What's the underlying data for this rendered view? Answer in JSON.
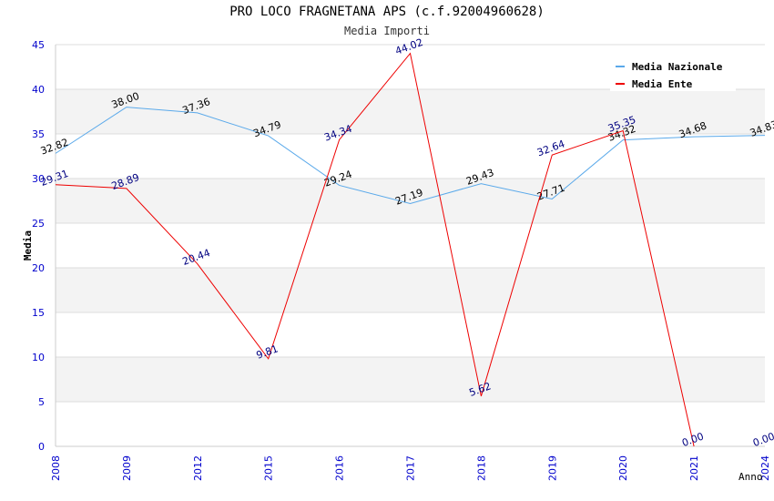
{
  "chart_data": {
    "type": "line",
    "title": "PRO LOCO FRAGNETANA APS (c.f.92004960628)",
    "subtitle": "Media Importi",
    "xlabel": "Anno",
    "ylabel": "Media",
    "ylim": [
      0,
      45
    ],
    "yticks": [
      0,
      5,
      10,
      15,
      20,
      25,
      30,
      35,
      40,
      45
    ],
    "categories": [
      "2008",
      "2009",
      "2012",
      "2015",
      "2016",
      "2017",
      "2018",
      "2019",
      "2020",
      "2021",
      "2024"
    ],
    "grid": true,
    "legend_position": "top-right",
    "series": [
      {
        "name": "Media Nazionale",
        "color": "#5aa9ea",
        "label_color": "#000000",
        "values": [
          32.82,
          38.0,
          37.36,
          34.79,
          29.24,
          27.19,
          29.43,
          27.71,
          34.32,
          34.68,
          34.83
        ],
        "labels": [
          "32.82",
          "38.00",
          "37.36",
          "34.79",
          "29.24",
          "27.19",
          "29.43",
          "27.71",
          "34.32",
          "34.68",
          "34.83"
        ]
      },
      {
        "name": "Media Ente",
        "color": "#ee0000",
        "label_color": "#000080",
        "values": [
          29.31,
          28.89,
          20.44,
          9.81,
          34.34,
          44.02,
          5.62,
          32.64,
          35.35,
          0.0,
          0.0
        ],
        "labels": [
          "29.31",
          "28.89",
          "20.44",
          "9.81",
          "34.34",
          "44.02",
          "5.62",
          "32.64",
          "35.35",
          "0.00",
          "0.00"
        ],
        "draw_until_index": 9
      }
    ],
    "colors": {
      "axis_tick": "#0000cc",
      "band": "#f3f3f3",
      "grid": "#dddddd"
    }
  }
}
